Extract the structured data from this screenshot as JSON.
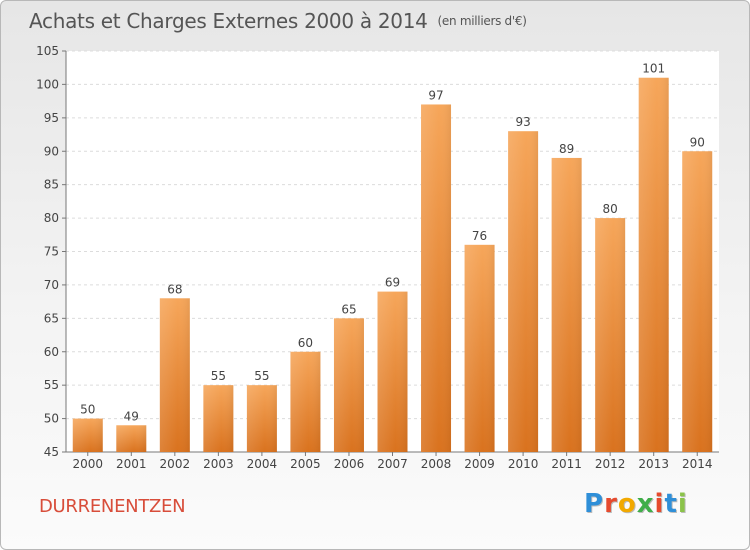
{
  "title": "Achats et Charges Externes 2000 à 2014",
  "subtitle": "(en milliers d'€)",
  "town": "DURRENENTZEN",
  "logo": {
    "letters": [
      "P",
      "r",
      "o",
      "x",
      "i",
      "t",
      "i"
    ],
    "colors": [
      "#2f8fd8",
      "#e64a2e",
      "#f2a900",
      "#3fae49",
      "#e64a2e",
      "#2f8fd8",
      "#8bc34a"
    ]
  },
  "chart_data": {
    "type": "bar",
    "categories": [
      "2000",
      "2001",
      "2002",
      "2003",
      "2004",
      "2005",
      "2006",
      "2007",
      "2008",
      "2009",
      "2010",
      "2011",
      "2012",
      "2013",
      "2014"
    ],
    "values": [
      50,
      49,
      68,
      55,
      55,
      60,
      65,
      69,
      97,
      76,
      93,
      89,
      80,
      101,
      90
    ],
    "title": "Achats et Charges Externes 2000 à 2014",
    "subtitle": "(en milliers d'€)",
    "xlabel": "",
    "ylabel": "",
    "ylim": [
      45,
      105
    ],
    "yticks": [
      45,
      50,
      55,
      60,
      65,
      70,
      75,
      80,
      85,
      90,
      95,
      100,
      105
    ],
    "grid": "horizontal",
    "bar_color_top": "#f6a65a",
    "bar_color_bottom": "#d9721e"
  }
}
